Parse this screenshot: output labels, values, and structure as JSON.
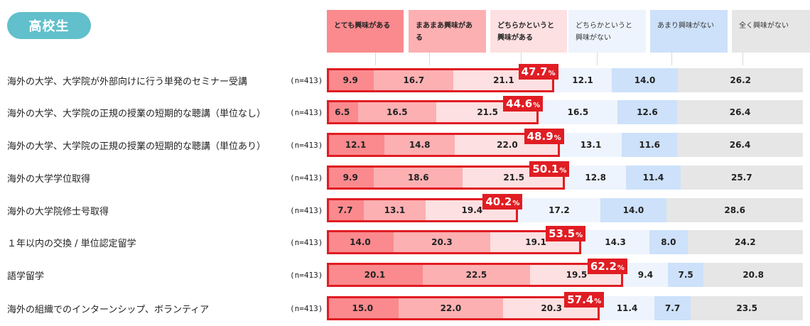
{
  "badge": {
    "label": "高校生"
  },
  "legend": [
    {
      "label": "とても興味がある",
      "color": "#fa8a8e"
    },
    {
      "label": "まあまあ興味がある",
      "color": "#fcb0b2"
    },
    {
      "label": "どちらかというと\n興味がある",
      "color": "#fde0e1"
    },
    {
      "label": "どちらかというと\n興味がない",
      "color": "#eef4fd"
    },
    {
      "label": "あまり興味がない",
      "color": "#cde1fa"
    },
    {
      "label": "全く興味がない",
      "color": "#e6e6e6"
    }
  ],
  "rows": [
    {
      "label": "海外の大学、大学院が外部向けに行う単発のセミナー受講",
      "n": "(n=413)",
      "values": [
        "9.9",
        "16.7",
        "21.1",
        "12.1",
        "14.0",
        "26.2"
      ],
      "total": "47.7"
    },
    {
      "label": "海外の大学、大学院の正規の授業の短期的な聴講（単位なし）",
      "n": "(n=413)",
      "values": [
        "6.5",
        "16.5",
        "21.5",
        "16.5",
        "12.6",
        "26.4"
      ],
      "total": "44.6"
    },
    {
      "label": "海外の大学、大学院の正規の授業の短期的な聴講（単位あり）",
      "n": "(n=413)",
      "values": [
        "12.1",
        "14.8",
        "22.0",
        "13.1",
        "11.6",
        "26.4"
      ],
      "total": "48.9"
    },
    {
      "label": " 海外の大学学位取得",
      "n": "(n=413)",
      "values": [
        "9.9",
        "18.6",
        "21.5",
        "12.8",
        "11.4",
        "25.7"
      ],
      "total": "50.1"
    },
    {
      "label": " 海外の大学院修士号取得",
      "n": "(n=413)",
      "values": [
        "7.7",
        "13.1",
        "19.4",
        "17.2",
        "14.0",
        "28.6"
      ],
      "total": "40.2"
    },
    {
      "label": "１年以内の交換 / 単位認定留学",
      "n": "(n=413)",
      "values": [
        "14.0",
        "20.3",
        "19.1",
        "14.3",
        "8.0",
        "24.2"
      ],
      "total": "53.5"
    },
    {
      "label": "語学留学",
      "n": "(n=413)",
      "values": [
        "20.1",
        "22.5",
        "19.5",
        "9.4",
        "7.5",
        "20.8"
      ],
      "total": "62.2"
    },
    {
      "label": "海外の組織でのインターンシップ、ボランティア",
      "n": "(n=413)",
      "values": [
        "15.0",
        "22.0",
        "20.3",
        "11.4",
        "7.7",
        "23.5"
      ],
      "total": "57.4"
    }
  ],
  "pct_symbol": "%",
  "chart_data": {
    "type": "bar",
    "orientation": "horizontal",
    "stacked": true,
    "title": "高校生",
    "categories": [
      "海外の大学、大学院が外部向けに行う単発のセミナー受講",
      "海外の大学、大学院の正規の授業の短期的な聴講（単位なし）",
      "海外の大学、大学院の正規の授業の短期的な聴講（単位あり）",
      "海外の大学学位取得",
      "海外の大学院修士号取得",
      "１年以内の交換 / 単位認定留学",
      "語学留学",
      "海外の組織でのインターンシップ、ボランティア"
    ],
    "sample_size": "n=413",
    "series": [
      {
        "name": "とても興味がある",
        "values": [
          9.9,
          6.5,
          12.1,
          9.9,
          7.7,
          14.0,
          20.1,
          15.0
        ]
      },
      {
        "name": "まあまあ興味がある",
        "values": [
          16.7,
          16.5,
          14.8,
          18.6,
          13.1,
          20.3,
          22.5,
          22.0
        ]
      },
      {
        "name": "どちらかというと興味がある",
        "values": [
          21.1,
          21.5,
          22.0,
          21.5,
          19.4,
          19.1,
          19.5,
          20.3
        ]
      },
      {
        "name": "どちらかというと興味がない",
        "values": [
          12.1,
          16.5,
          13.1,
          12.8,
          17.2,
          14.3,
          9.4,
          11.4
        ]
      },
      {
        "name": "あまり興味がない",
        "values": [
          14.0,
          12.6,
          11.6,
          11.4,
          14.0,
          8.0,
          7.5,
          7.7
        ]
      },
      {
        "name": "全く興味がない",
        "values": [
          26.2,
          26.4,
          26.4,
          25.7,
          28.6,
          24.2,
          20.8,
          23.5
        ]
      }
    ],
    "annotations": {
      "interested_total_pct": [
        47.7,
        44.6,
        48.9,
        50.1,
        40.2,
        53.5,
        62.2,
        57.4
      ]
    },
    "xlim": [
      0,
      100
    ],
    "legend_position": "top",
    "grid": false
  }
}
